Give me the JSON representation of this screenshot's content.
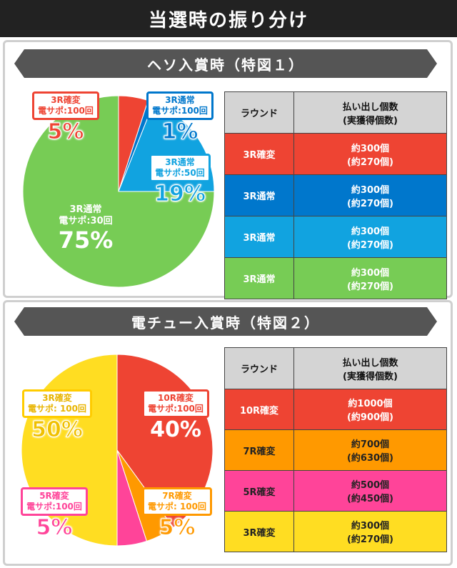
{
  "title": "当選時の振り分け",
  "section1": {
    "heading": "ヘソ入賞時（特図１）",
    "slices": [
      {
        "name": "3R確変",
        "sub": "電サポ:100回",
        "pct": "5%",
        "value": 5,
        "color": "#ee4433"
      },
      {
        "name": "3R通常",
        "sub": "電サポ:100回",
        "pct": "1%",
        "value": 1,
        "color": "#0077cc"
      },
      {
        "name": "3R通常",
        "sub": "電サポ:50回",
        "pct": "19%",
        "value": 19,
        "color": "#11a3e0"
      },
      {
        "name": "3R通常",
        "sub": "電サポ:30回",
        "pct": "75%",
        "value": 75,
        "color": "#77cc55"
      }
    ],
    "table": {
      "col1_header": "ラウンド",
      "col2_header_line1": "払い出し個数",
      "col2_header_line2": "(実獲得個数)",
      "rows": [
        {
          "round": "3R確変",
          "line1": "約300個",
          "line2": "(約270個)",
          "color": "#ee4433"
        },
        {
          "round": "3R通常",
          "line1": "約300個",
          "line2": "(約270個)",
          "color": "#0077cc"
        },
        {
          "round": "3R通常",
          "line1": "約300個",
          "line2": "(約270個)",
          "color": "#11a3e0"
        },
        {
          "round": "3R通常",
          "line1": "約300個",
          "line2": "(約270個)",
          "color": "#77cc55"
        }
      ]
    }
  },
  "section2": {
    "heading": "電チュー入賞時（特図２）",
    "slices": [
      {
        "name": "10R確変",
        "sub": "電サポ:100回",
        "pct": "40%",
        "value": 40,
        "color": "#ee4433"
      },
      {
        "name": "7R確変",
        "sub": "電サポ: 100回",
        "pct": "5%",
        "value": 5,
        "color": "#ff9900"
      },
      {
        "name": "5R確変",
        "sub": "電サポ:100回",
        "pct": "5%",
        "value": 5,
        "color": "#ff4499"
      },
      {
        "name": "3R確変",
        "sub": "電サポ: 100回",
        "pct": "50%",
        "value": 50,
        "color": "#ffdd22"
      }
    ],
    "table": {
      "col1_header": "ラウンド",
      "col2_header_line1": "払い出し個数",
      "col2_header_line2": "(実獲得個数)",
      "rows": [
        {
          "round": "10R確変",
          "line1": "約1000個",
          "line2": "(約900個)",
          "color": "#ee4433"
        },
        {
          "round": "7R確変",
          "line1": "約700個",
          "line2": "(約630個)",
          "color": "#ff9900"
        },
        {
          "round": "5R確変",
          "line1": "約500個",
          "line2": "(約450個)",
          "color": "#ff4499"
        },
        {
          "round": "3R確変",
          "line1": "約300個",
          "line2": "(約270個)",
          "color": "#ffdd22"
        }
      ]
    }
  }
}
